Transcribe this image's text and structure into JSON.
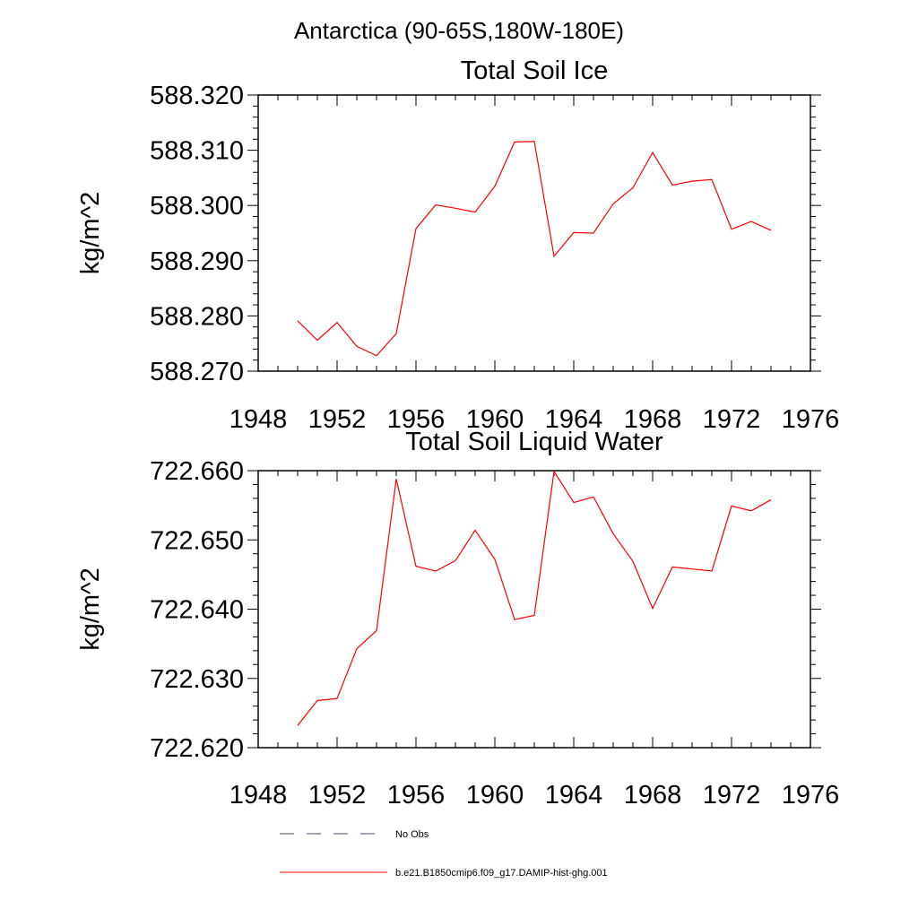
{
  "suptitle": "Antarctica (90-65S,180W-180E)",
  "colors": {
    "model_line": "#ff0000",
    "obs_line": "#4a4a7a",
    "axis": "#000000"
  },
  "chart_data": [
    {
      "type": "line",
      "title": "Total Soil Ice",
      "ylabel": "kg/m^2",
      "xlabel": "",
      "xlim": [
        1948,
        1976
      ],
      "ylim": [
        588.27,
        588.32
      ],
      "xticks": [
        1948,
        1952,
        1956,
        1960,
        1964,
        1968,
        1972,
        1976
      ],
      "xtick_labels": [
        "1948",
        "1952",
        "1956",
        "1960",
        "1964",
        "1968",
        "1972",
        "1976"
      ],
      "yticks": [
        588.27,
        588.28,
        588.29,
        588.3,
        588.31,
        588.32
      ],
      "ytick_labels": [
        "588.270",
        "588.280",
        "588.290",
        "588.300",
        "588.310",
        "588.320"
      ],
      "grid": false,
      "series": [
        {
          "name": "b.e21.B1850cmip6.f09_g17.DAMIP-hist-ghg.001",
          "x": [
            1950,
            1951,
            1952,
            1953,
            1954,
            1955,
            1956,
            1957,
            1958,
            1959,
            1960,
            1961,
            1962,
            1963,
            1964,
            1965,
            1966,
            1967,
            1968,
            1969,
            1970,
            1971,
            1972,
            1973,
            1974
          ],
          "values": [
            588.2791,
            588.2756,
            588.2788,
            588.2745,
            588.2728,
            588.2768,
            588.2958,
            588.3001,
            588.2995,
            588.2988,
            588.3035,
            588.3115,
            588.3116,
            588.2908,
            588.2951,
            588.295,
            588.3003,
            588.3032,
            588.3096,
            588.3037,
            588.3044,
            588.3047,
            588.2957,
            588.2971,
            588.2955
          ]
        }
      ]
    },
    {
      "type": "line",
      "title": "Total Soil Liquid Water",
      "ylabel": "kg/m^2",
      "xlabel": "",
      "xlim": [
        1948,
        1976
      ],
      "ylim": [
        722.62,
        722.66
      ],
      "xticks": [
        1948,
        1952,
        1956,
        1960,
        1964,
        1968,
        1972,
        1976
      ],
      "xtick_labels": [
        "1948",
        "1952",
        "1956",
        "1960",
        "1964",
        "1968",
        "1972",
        "1976"
      ],
      "yticks": [
        722.62,
        722.63,
        722.64,
        722.65,
        722.66
      ],
      "ytick_labels": [
        "722.620",
        "722.630",
        "722.640",
        "722.650",
        "722.660"
      ],
      "grid": false,
      "series": [
        {
          "name": "b.e21.B1850cmip6.f09_g17.DAMIP-hist-ghg.001",
          "x": [
            1950,
            1951,
            1952,
            1953,
            1954,
            1955,
            1956,
            1957,
            1958,
            1959,
            1960,
            1961,
            1962,
            1963,
            1964,
            1965,
            1966,
            1967,
            1968,
            1969,
            1970,
            1971,
            1972,
            1973,
            1974
          ],
          "values": [
            722.6232,
            722.6268,
            722.6271,
            722.6343,
            722.6369,
            722.6588,
            722.6462,
            722.6455,
            722.647,
            722.6514,
            722.6472,
            722.6385,
            722.6391,
            722.6599,
            722.6554,
            722.6562,
            722.6509,
            722.6469,
            722.6401,
            722.6461,
            722.6458,
            722.6455,
            722.6549,
            722.6542,
            722.6558
          ]
        }
      ]
    }
  ],
  "legend": {
    "placement": "bottom",
    "items": [
      {
        "label": "No Obs",
        "style": "dashed"
      },
      {
        "label": "b.e21.B1850cmip6.f09_g17.DAMIP-hist-ghg.001",
        "style": "solid"
      }
    ]
  }
}
